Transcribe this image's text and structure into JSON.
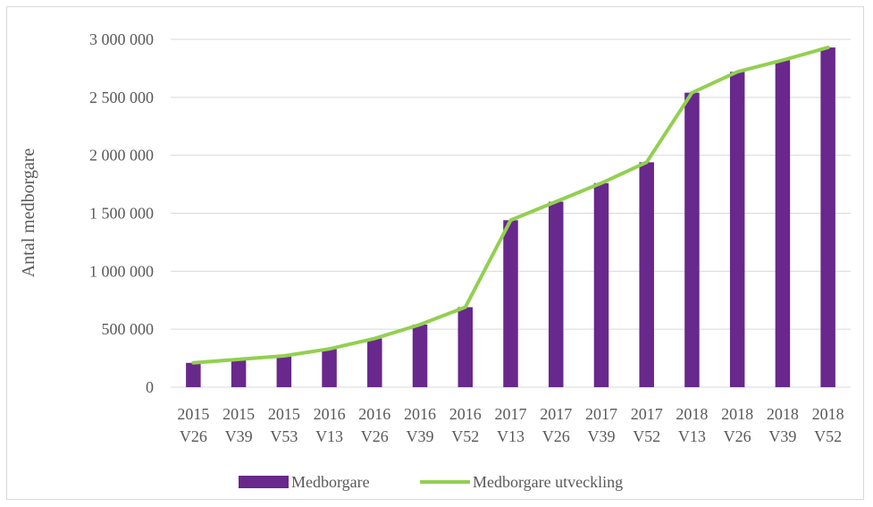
{
  "chart_data": {
    "type": "bar",
    "title": "",
    "ylabel": "Antal medborgare",
    "xlabel": "",
    "ylim": [
      0,
      3000000
    ],
    "y_ticks": [
      0,
      500000,
      1000000,
      1500000,
      2000000,
      2500000,
      3000000
    ],
    "y_tick_labels": [
      "0",
      "500 000",
      "1 000 000",
      "1 500 000",
      "2 000 000",
      "2 500 000",
      "3 000 000"
    ],
    "grid": true,
    "legend_position": "bottom",
    "categories": [
      [
        "2015",
        "V26"
      ],
      [
        "2015",
        "V39"
      ],
      [
        "2015",
        "V53"
      ],
      [
        "2016",
        "V13"
      ],
      [
        "2016",
        "V26"
      ],
      [
        "2016",
        "V39"
      ],
      [
        "2016",
        "V52"
      ],
      [
        "2017",
        "V13"
      ],
      [
        "2017",
        "V26"
      ],
      [
        "2017",
        "V39"
      ],
      [
        "2017",
        "V52"
      ],
      [
        "2018",
        "V13"
      ],
      [
        "2018",
        "V26"
      ],
      [
        "2018",
        "V39"
      ],
      [
        "2018",
        "V52"
      ]
    ],
    "series": [
      {
        "name": "Medborgare",
        "kind": "bar",
        "color": "#68288c",
        "values": [
          210000,
          240000,
          270000,
          330000,
          420000,
          540000,
          690000,
          1440000,
          1600000,
          1760000,
          1940000,
          2540000,
          2720000,
          2820000,
          2930000
        ]
      },
      {
        "name": "Medborgare utveckling",
        "kind": "line",
        "color": "#92d050",
        "values": [
          210000,
          240000,
          270000,
          330000,
          420000,
          540000,
          690000,
          1440000,
          1600000,
          1760000,
          1940000,
          2540000,
          2720000,
          2820000,
          2930000
        ]
      }
    ]
  }
}
